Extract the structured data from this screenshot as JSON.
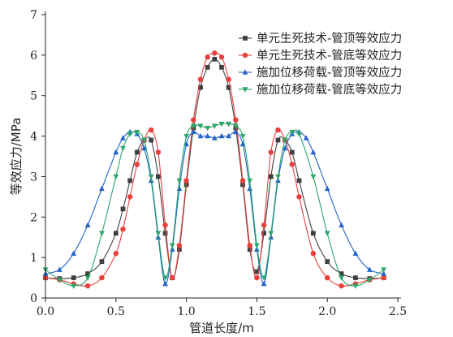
{
  "chart_data": {
    "type": "line",
    "xlabel": "管道长度/m",
    "ylabel": "等效应力/MPa",
    "xlim": [
      0,
      2.5
    ],
    "ylim": [
      0,
      7
    ],
    "xticks": [
      0.0,
      0.5,
      1.0,
      1.5,
      2.0,
      2.5
    ],
    "yticks": [
      0,
      1,
      2,
      3,
      4,
      5,
      6,
      7
    ],
    "xtick_labels": [
      "0.0",
      "0.5",
      "1.0",
      "1.5",
      "2.0",
      "2.5"
    ],
    "ytick_labels": [
      "0",
      "1",
      "2",
      "3",
      "4",
      "5",
      "6",
      "7"
    ],
    "grid": false,
    "legend_position": "top-right",
    "series": [
      {
        "name": "单元生死技术-管顶等效应力",
        "color": "#404040",
        "marker": "square",
        "x": [
          0.0,
          0.1,
          0.2,
          0.3,
          0.4,
          0.5,
          0.55,
          0.6,
          0.65,
          0.7,
          0.75,
          0.8,
          0.85,
          0.9,
          0.95,
          1.0,
          1.05,
          1.1,
          1.15,
          1.2,
          1.25,
          1.3,
          1.35,
          1.4,
          1.45,
          1.5,
          1.55,
          1.6,
          1.65,
          1.7,
          1.75,
          1.8,
          1.9,
          2.0,
          2.1,
          2.2,
          2.3,
          2.4
        ],
        "y": [
          0.5,
          0.48,
          0.5,
          0.6,
          0.9,
          1.6,
          2.2,
          2.9,
          3.6,
          3.9,
          3.9,
          3.0,
          1.6,
          0.5,
          1.2,
          2.8,
          4.2,
          5.2,
          5.7,
          5.9,
          5.7,
          5.2,
          4.2,
          2.8,
          1.2,
          0.65,
          1.6,
          3.0,
          3.9,
          3.9,
          3.6,
          2.9,
          1.6,
          0.9,
          0.6,
          0.5,
          0.48,
          0.5
        ]
      },
      {
        "name": "单元生死技术-管底等效应力",
        "color": "#e8413c",
        "marker": "circle",
        "x": [
          0.0,
          0.1,
          0.2,
          0.3,
          0.4,
          0.5,
          0.55,
          0.6,
          0.65,
          0.7,
          0.75,
          0.8,
          0.85,
          0.9,
          0.95,
          1.0,
          1.05,
          1.1,
          1.15,
          1.2,
          1.25,
          1.3,
          1.35,
          1.4,
          1.45,
          1.5,
          1.55,
          1.6,
          1.65,
          1.7,
          1.75,
          1.8,
          1.9,
          2.0,
          2.1,
          2.2,
          2.3,
          2.4
        ],
        "y": [
          0.5,
          0.45,
          0.35,
          0.3,
          0.5,
          1.1,
          1.7,
          2.5,
          3.3,
          3.9,
          4.15,
          3.6,
          1.8,
          0.5,
          1.3,
          2.9,
          4.4,
          5.4,
          5.95,
          6.05,
          5.95,
          5.4,
          4.4,
          2.9,
          1.3,
          0.5,
          1.8,
          3.6,
          4.15,
          3.9,
          3.3,
          2.5,
          1.1,
          0.5,
          0.3,
          0.35,
          0.45,
          0.5
        ]
      },
      {
        "name": "施加位移荷载-管顶等效应力",
        "color": "#2464c8",
        "marker": "triangle-up",
        "x": [
          0.0,
          0.1,
          0.2,
          0.3,
          0.4,
          0.5,
          0.55,
          0.6,
          0.65,
          0.7,
          0.75,
          0.8,
          0.85,
          0.9,
          0.95,
          1.0,
          1.05,
          1.1,
          1.15,
          1.2,
          1.25,
          1.3,
          1.35,
          1.4,
          1.45,
          1.5,
          1.55,
          1.6,
          1.65,
          1.7,
          1.75,
          1.8,
          1.85,
          1.9,
          2.0,
          2.1,
          2.2,
          2.3,
          2.4
        ],
        "y": [
          0.6,
          0.7,
          1.1,
          1.8,
          2.7,
          3.6,
          3.95,
          4.1,
          4.05,
          3.7,
          2.9,
          1.5,
          0.35,
          1.2,
          2.7,
          3.8,
          4.1,
          4.0,
          4.0,
          3.95,
          4.0,
          4.0,
          4.1,
          3.8,
          2.7,
          1.2,
          0.35,
          1.5,
          2.9,
          3.7,
          4.05,
          4.1,
          3.95,
          3.6,
          2.7,
          1.8,
          1.1,
          0.7,
          0.6
        ]
      },
      {
        "name": "施加位移荷载-管底等效应力",
        "color": "#2ca66a",
        "marker": "triangle-down",
        "x": [
          0.0,
          0.1,
          0.2,
          0.3,
          0.4,
          0.5,
          0.55,
          0.6,
          0.65,
          0.7,
          0.75,
          0.8,
          0.85,
          0.9,
          0.95,
          1.0,
          1.05,
          1.1,
          1.15,
          1.2,
          1.25,
          1.3,
          1.35,
          1.4,
          1.45,
          1.5,
          1.55,
          1.6,
          1.65,
          1.7,
          1.75,
          1.8,
          1.9,
          2.0,
          2.1,
          2.2,
          2.3,
          2.4
        ],
        "y": [
          0.7,
          0.45,
          0.3,
          0.5,
          1.6,
          3.0,
          3.7,
          4.05,
          4.1,
          3.9,
          3.0,
          1.6,
          0.5,
          1.3,
          2.9,
          4.0,
          4.25,
          4.25,
          4.2,
          4.25,
          4.3,
          4.3,
          4.25,
          4.0,
          2.9,
          1.3,
          0.5,
          1.6,
          3.0,
          3.9,
          4.1,
          4.05,
          3.0,
          1.6,
          0.5,
          0.3,
          0.45,
          0.7
        ]
      }
    ]
  }
}
